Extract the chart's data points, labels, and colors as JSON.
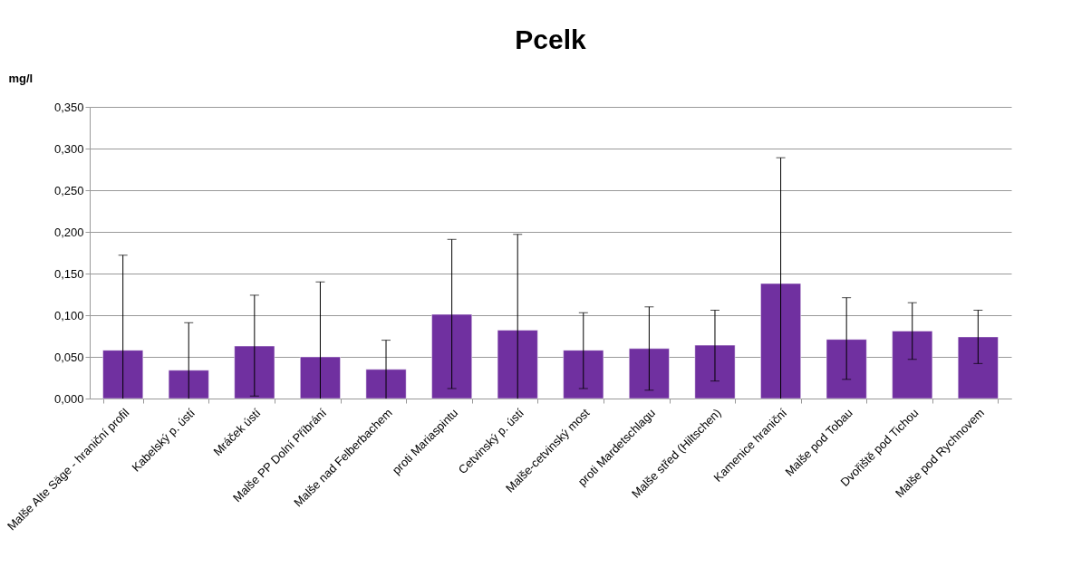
{
  "chart_data": {
    "type": "bar",
    "title": "Pcelk",
    "ylabel": "mg/l",
    "categories": [
      "Malše Alte Säge - hraniční profil",
      "Kabelský p. ústí",
      "Mráček ústí",
      "Malše PP Dolní Příbrání",
      "Malše nad Felberbachem",
      "proti Mariaspintu",
      "Cetvinský p. ústí",
      "Malše-cetvinský most",
      "proti Mardetschlagu",
      "Malše střed (Hiltschen)",
      "Kamenice hraniční",
      "Malše pod Tobau",
      "Dvořiště pod  Tichou",
      "Malše pod Rychnovem"
    ],
    "values": [
      0.058,
      0.034,
      0.063,
      0.05,
      0.035,
      0.101,
      0.082,
      0.058,
      0.06,
      0.064,
      0.138,
      0.071,
      0.081,
      0.074
    ],
    "errors": [
      [
        0,
        0.172
      ],
      [
        0,
        0.091
      ],
      [
        0.003,
        0.124
      ],
      [
        0,
        0.14
      ],
      [
        0,
        0.07
      ],
      [
        0.012,
        0.191
      ],
      [
        0,
        0.197
      ],
      [
        0.012,
        0.103
      ],
      [
        0.01,
        0.11
      ],
      [
        0.021,
        0.106
      ],
      [
        0,
        0.289
      ],
      [
        0.023,
        0.121
      ],
      [
        0.047,
        0.115
      ],
      [
        0.042,
        0.106
      ]
    ],
    "color": "#7030a0",
    "ylim": [
      0,
      0.35
    ],
    "yticks": [
      {
        "value": 0,
        "label": "0,000"
      },
      {
        "value": 0.05,
        "label": "0,050"
      },
      {
        "value": 0.1,
        "label": "0,100"
      },
      {
        "value": 0.15,
        "label": "0,150"
      },
      {
        "value": 0.2,
        "label": "0,200"
      },
      {
        "value": 0.25,
        "label": "0,250"
      },
      {
        "value": 0.3,
        "label": "0,300"
      },
      {
        "value": 0.35,
        "label": "0,350"
      }
    ],
    "grid": "y"
  }
}
